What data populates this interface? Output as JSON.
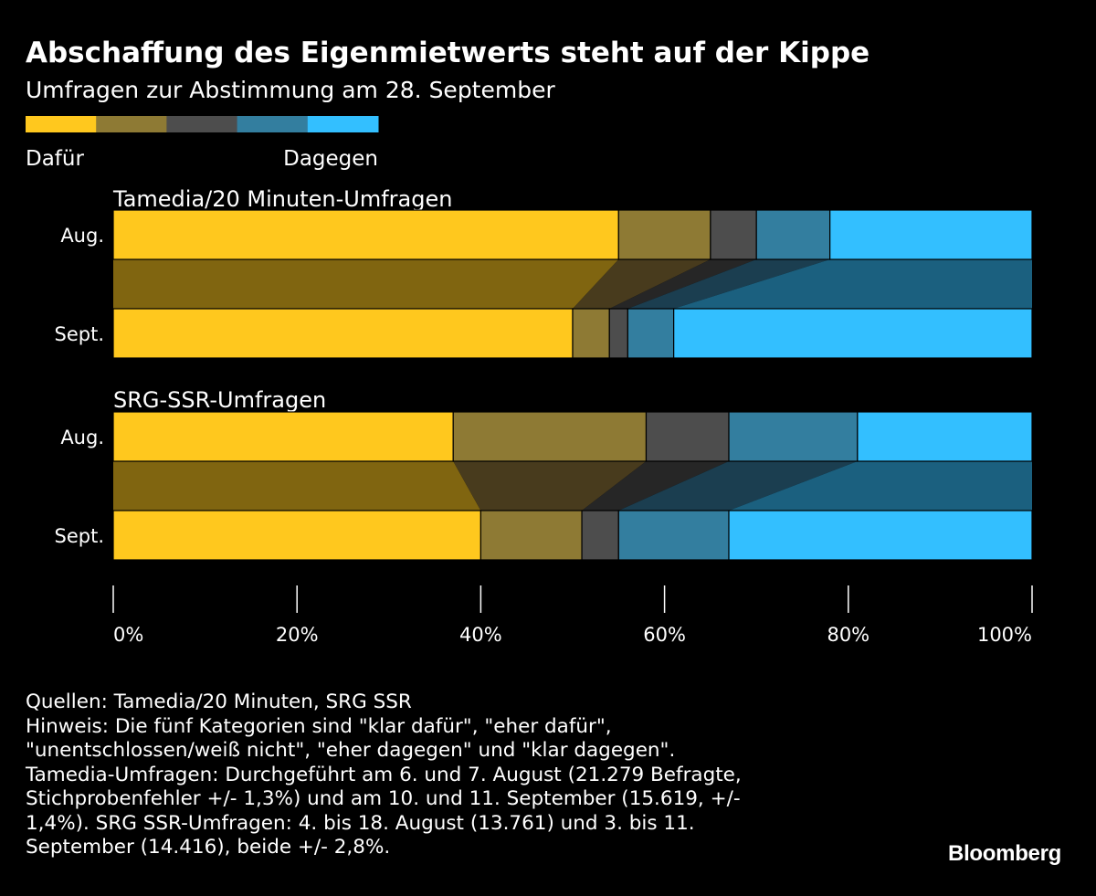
{
  "title": "Abschaffung des Eigenmietwerts steht auf der Kippe",
  "subtitle": "Umfragen zur Abstimmung am 28. September",
  "legend": {
    "left_label": "Dafür",
    "right_label": "Dagegen",
    "colors": [
      "#ffc81e",
      "#8e7a34",
      "#4d4d4d",
      "#337e9f",
      "#33bfff"
    ]
  },
  "chart_data": {
    "type": "bar",
    "orientation": "horizontal",
    "stacked": true,
    "categories_meaning": [
      "klar dafür",
      "eher dafür",
      "unentschlossen/weiß nicht",
      "eher dagegen",
      "klar dagegen"
    ],
    "groups": [
      {
        "label": "Tamedia/20 Minuten-Umfragen",
        "bars": [
          {
            "label": "Aug.",
            "values": [
              55,
              10,
              5,
              8,
              22
            ]
          },
          {
            "label": "Sept.",
            "values": [
              50,
              4,
              2,
              5,
              39
            ]
          }
        ]
      },
      {
        "label": "SRG-SSR-Umfragen",
        "bars": [
          {
            "label": "Aug.",
            "values": [
              37,
              21,
              9,
              14,
              19
            ]
          },
          {
            "label": "Sept.",
            "values": [
              40,
              11,
              4,
              12,
              33
            ]
          }
        ]
      }
    ],
    "xlim": [
      0,
      100
    ],
    "xticks": [
      "0%",
      "20%",
      "40%",
      "60%",
      "80%",
      "100%"
    ]
  },
  "notes": {
    "sources": "Quellen: Tamedia/20 Minuten, SRG SSR",
    "hint": "Hinweis: Die fünf Kategorien sind \"klar dafür\", \"eher dafür\",\n\"unentschlossen/weiß nicht\", \"eher dagegen\" und \"klar dagegen\".\nTamedia-Umfragen: Durchgeführt am 6. und 7. August (21.279 Befragte,\nStichprobenfehler +/- 1,3%) und am 10. und 11. September (15.619, +/-\n1,4%). SRG SSR-Umfragen: 4. bis 18. August (13.761) und 3. bis 11.\nSeptember (14.416), beide +/- 2,8%."
  },
  "brand": "Bloomberg"
}
